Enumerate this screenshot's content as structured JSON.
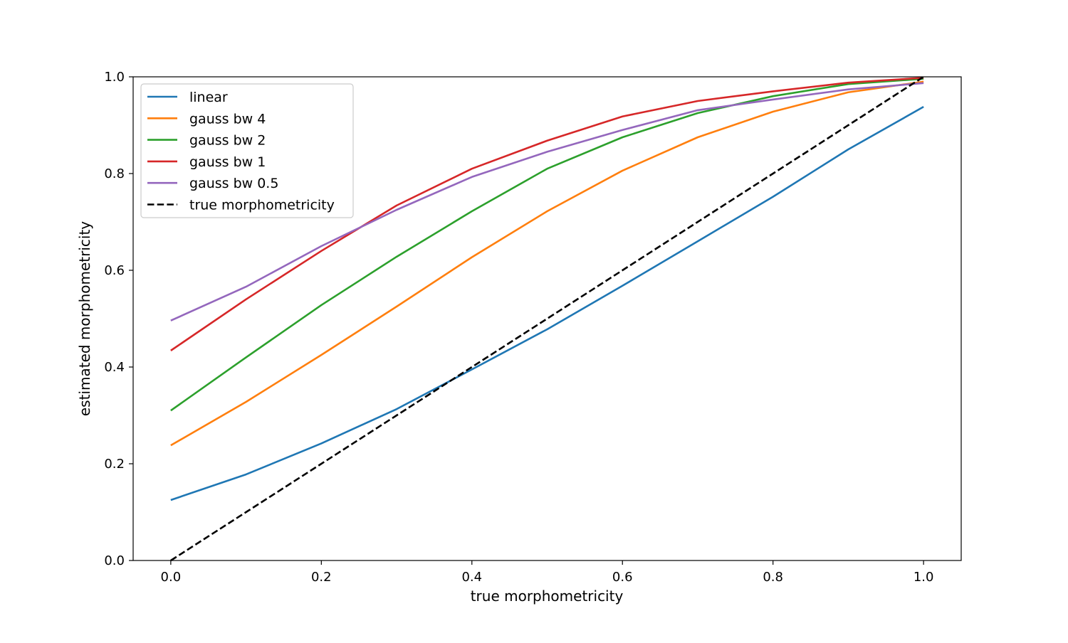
{
  "chart_data": {
    "type": "line",
    "title": "",
    "xlabel": "true morphometricity",
    "ylabel": "estimated morphometricity",
    "xlim": [
      -0.05,
      1.05
    ],
    "ylim": [
      0.0,
      1.0
    ],
    "xticks": [
      0.0,
      0.2,
      0.4,
      0.6,
      0.8,
      1.0
    ],
    "xtick_labels": [
      "0.0",
      "0.2",
      "0.4",
      "0.6",
      "0.8",
      "1.0"
    ],
    "yticks": [
      0.0,
      0.2,
      0.4,
      0.6,
      0.8,
      1.0
    ],
    "ytick_labels": [
      "0.0",
      "0.2",
      "0.4",
      "0.6",
      "0.8",
      "1.0"
    ],
    "grid": false,
    "legend_position": "top-left",
    "x": [
      0.0,
      0.1,
      0.2,
      0.3,
      0.4,
      0.5,
      0.6,
      0.7,
      0.8,
      0.9,
      1.0
    ],
    "series": [
      {
        "name": "linear",
        "color": "#1f77b4",
        "dash": "solid",
        "values": [
          0.125,
          0.178,
          0.242,
          0.313,
          0.395,
          0.478,
          0.568,
          0.66,
          0.752,
          0.85,
          0.938
        ]
      },
      {
        "name": "gauss bw 4",
        "color": "#ff7f0e",
        "dash": "solid",
        "values": [
          0.238,
          0.328,
          0.425,
          0.525,
          0.627,
          0.722,
          0.806,
          0.875,
          0.928,
          0.968,
          0.99
        ]
      },
      {
        "name": "gauss bw 2",
        "color": "#2ca02c",
        "dash": "solid",
        "values": [
          0.31,
          0.42,
          0.528,
          0.628,
          0.722,
          0.81,
          0.875,
          0.925,
          0.96,
          0.985,
          0.996
        ]
      },
      {
        "name": "gauss bw 1",
        "color": "#d62728",
        "dash": "solid",
        "values": [
          0.434,
          0.54,
          0.64,
          0.734,
          0.81,
          0.868,
          0.918,
          0.95,
          0.97,
          0.988,
          0.998
        ]
      },
      {
        "name": "gauss bw 0.5",
        "color": "#9467bd",
        "dash": "solid",
        "values": [
          0.496,
          0.566,
          0.65,
          0.725,
          0.793,
          0.845,
          0.89,
          0.931,
          0.953,
          0.974,
          0.987
        ]
      },
      {
        "name": "true morphometricity",
        "color": "#000000",
        "dash": "dashed",
        "values": [
          0.0,
          0.1,
          0.2,
          0.3,
          0.4,
          0.5,
          0.6,
          0.7,
          0.8,
          0.9,
          1.0
        ]
      }
    ]
  }
}
